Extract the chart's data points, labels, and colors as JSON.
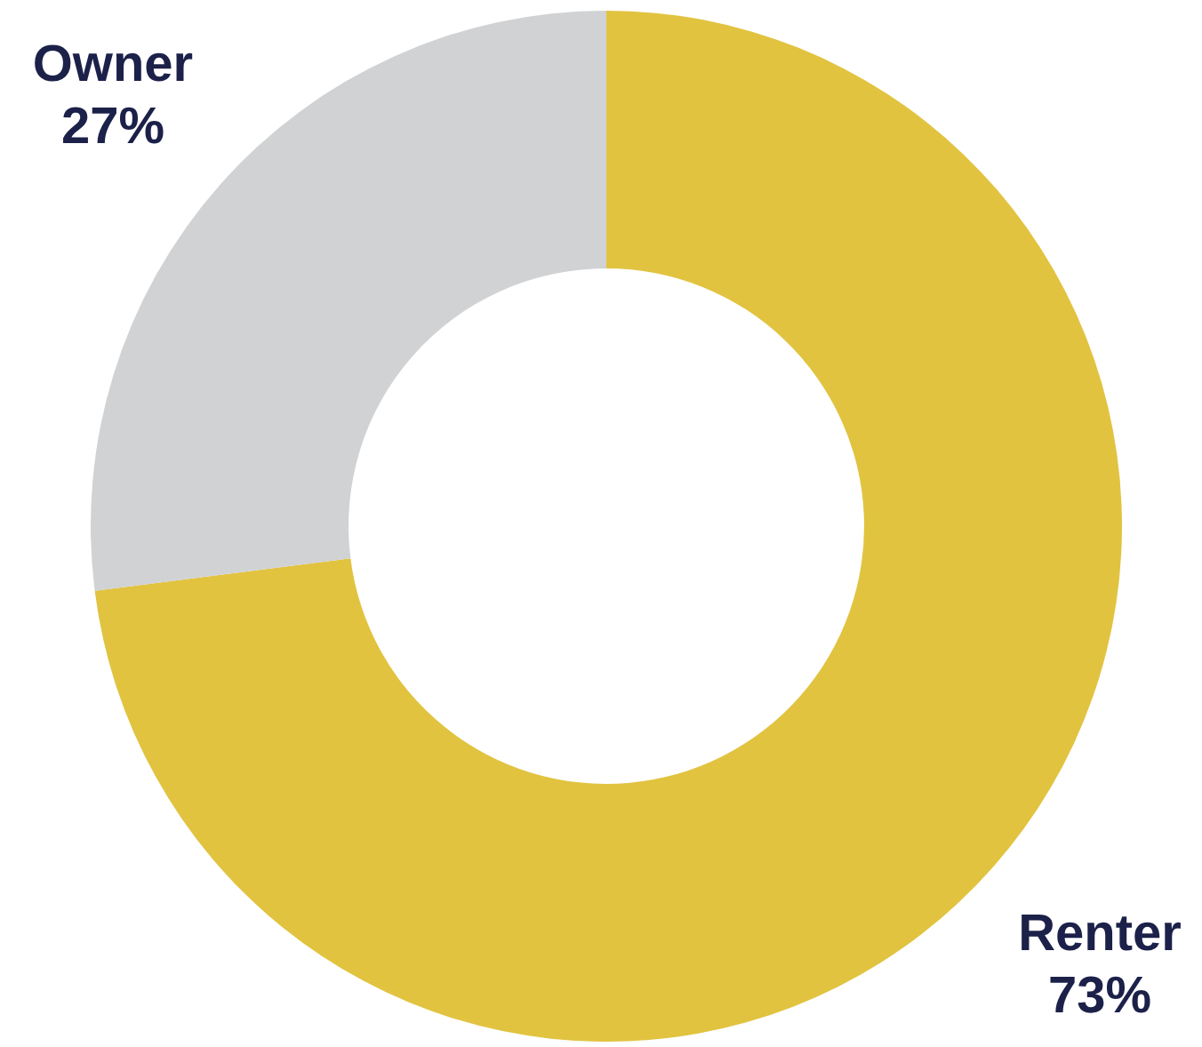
{
  "chart_data": {
    "type": "donut",
    "categories": [
      "Renter",
      "Owner"
    ],
    "values": [
      73,
      27
    ],
    "colors": [
      "#e1c340",
      "#d1d2d4"
    ],
    "value_labels": [
      "73%",
      "27%"
    ]
  }
}
